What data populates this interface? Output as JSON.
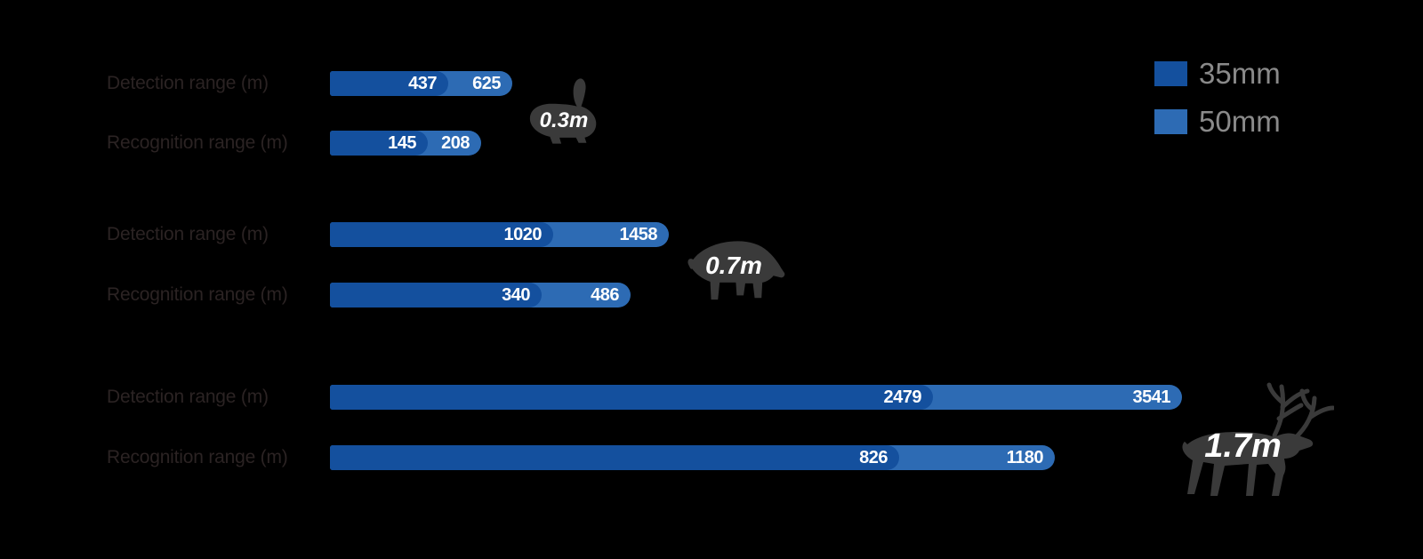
{
  "colors": {
    "background": "#000000",
    "bar_35mm": "#14509e",
    "bar_50mm": "#2d6bb4",
    "row_label_text": "#2b2323",
    "legend_text": "#8a8a8a",
    "bar_value_text": "#ffffff",
    "animal_silhouette": "#3a3a3a"
  },
  "legend": {
    "items": [
      {
        "label": "35mm",
        "color": "#14509e"
      },
      {
        "label": "50mm",
        "color": "#2d6bb4"
      }
    ]
  },
  "chart_data": {
    "type": "bar",
    "orientation": "horizontal",
    "series_names": [
      "35mm",
      "50mm"
    ],
    "legend_position": "top-right",
    "grid": false,
    "note": "bar lengths are illustrative (w35/w50 are measured pixel widths), values in meters",
    "groups": [
      {
        "target": {
          "animal": "rabbit",
          "size_label": "0.3m"
        },
        "rows": [
          {
            "label": "Detection range (m)",
            "v35": 437,
            "v50": 625,
            "w35": 133,
            "w50": 205
          },
          {
            "label": "Recognition range (m)",
            "v35": 145,
            "v50": 208,
            "w35": 110,
            "w50": 170
          }
        ]
      },
      {
        "target": {
          "animal": "boar",
          "size_label": "0.7m"
        },
        "rows": [
          {
            "label": "Detection range (m)",
            "v35": 1020,
            "v50": 1458,
            "w35": 251,
            "w50": 381
          },
          {
            "label": "Recognition range (m)",
            "v35": 340,
            "v50": 486,
            "w35": 238,
            "w50": 338
          }
        ]
      },
      {
        "target": {
          "animal": "reindeer",
          "size_label": "1.7m"
        },
        "rows": [
          {
            "label": "Detection range (m)",
            "v35": 2479,
            "v50": 3541,
            "w35": 678,
            "w50": 958
          },
          {
            "label": "Recognition range (m)",
            "v35": 826,
            "v50": 1180,
            "w35": 640,
            "w50": 815
          }
        ]
      }
    ]
  }
}
